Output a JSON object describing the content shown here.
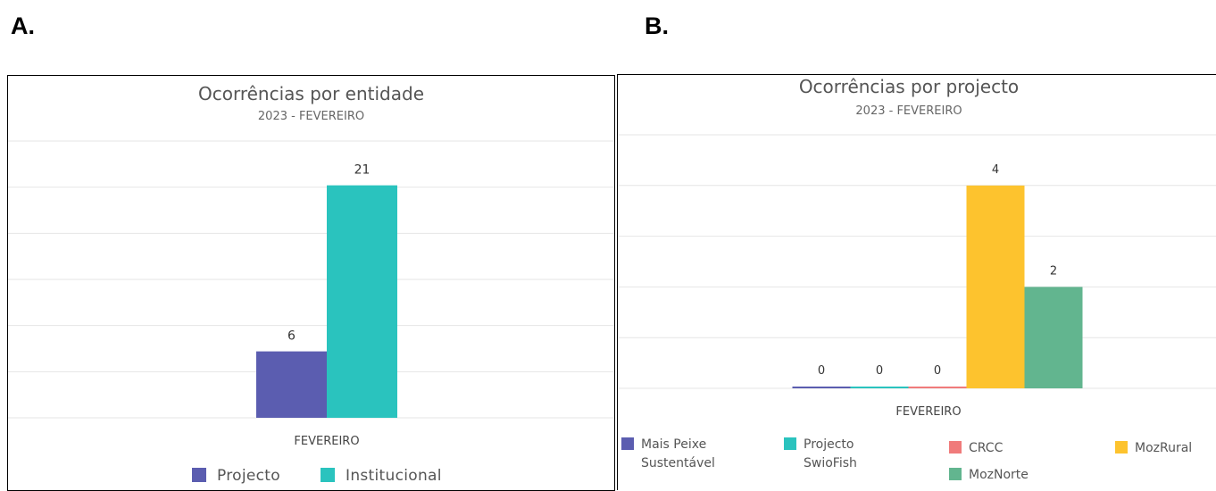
{
  "panels": {
    "a_label": "A.",
    "b_label": "B."
  },
  "chart_data": [
    {
      "type": "bar",
      "title": "Ocorrências por entidade",
      "subtitle": "2023 - FEVEREIRO",
      "categories": [
        "FEVEREIRO"
      ],
      "series": [
        {
          "name": "Projecto",
          "values": [
            6
          ],
          "color": "#5b5db0"
        },
        {
          "name": "Institucional",
          "values": [
            21
          ],
          "color": "#2ac3be"
        }
      ],
      "data_labels": true,
      "ylim": [
        0,
        25
      ],
      "grid": true,
      "legend": "bottom"
    },
    {
      "type": "bar",
      "title": "Ocorrências por projecto",
      "subtitle": "2023 - FEVEREIRO",
      "categories": [
        "FEVEREIRO"
      ],
      "series": [
        {
          "name": "Mais Peixe Sustentável",
          "legend_lines": [
            "Mais Peixe",
            "Sustentável"
          ],
          "values": [
            0
          ],
          "color": "#5b5db0"
        },
        {
          "name": "Projecto SwioFish",
          "legend_lines": [
            "Projecto",
            "SwioFish"
          ],
          "values": [
            0
          ],
          "color": "#2ac3be"
        },
        {
          "name": "CRCC",
          "legend_lines": [
            "CRCC"
          ],
          "values": [
            0
          ],
          "color": "#f07b7b"
        },
        {
          "name": "MozRural",
          "legend_lines": [
            "MozRural"
          ],
          "values": [
            4
          ],
          "color": "#fdc32e"
        },
        {
          "name": "MozNorte",
          "legend_lines": [
            "MozNorte"
          ],
          "values": [
            2
          ],
          "color": "#62b58f"
        }
      ],
      "data_labels": true,
      "ylim": [
        0,
        5
      ],
      "grid": true,
      "legend": "bottom"
    }
  ]
}
